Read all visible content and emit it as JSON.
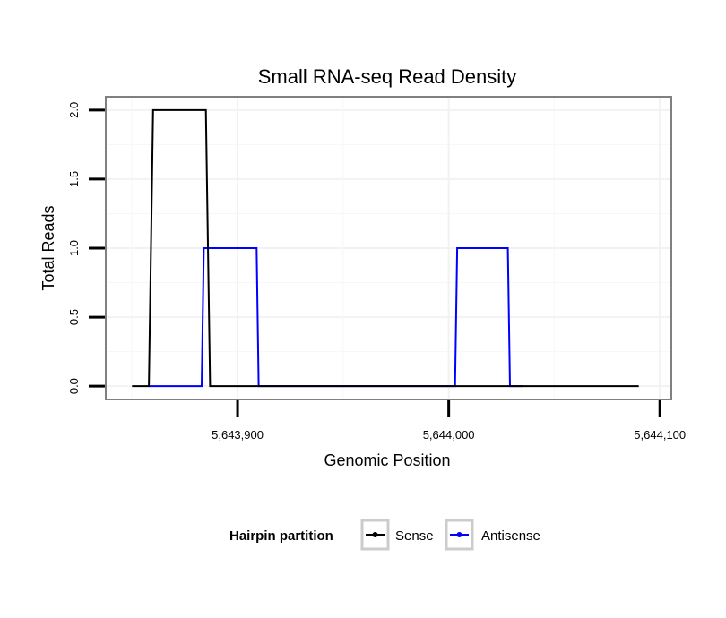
{
  "chart_data": {
    "type": "line",
    "title": "Small RNA-seq Read Density",
    "xlabel": "Genomic Position",
    "ylabel": "Total Reads",
    "xlim": [
      5643838,
      5644105
    ],
    "ylim": [
      -0.09,
      2.09
    ],
    "x_ticks": [
      5643900,
      5644000,
      5644100
    ],
    "x_tick_labels": [
      "5,643,900",
      "5,644,000",
      "5,644,100"
    ],
    "y_ticks": [
      0,
      0.5,
      1,
      1.5,
      2
    ],
    "y_tick_labels": [
      "0.0",
      "0.5",
      "1.0",
      "1.5",
      "2.0"
    ],
    "grid": true,
    "legend": {
      "title": "Hairpin partition",
      "position": "bottom",
      "entries": [
        "Sense",
        "Antisense"
      ]
    },
    "series": [
      {
        "name": "Sense",
        "color": "#000000",
        "x": [
          5643850,
          5643858,
          5643860,
          5643885,
          5643887,
          5644090
        ],
        "y": [
          0,
          0,
          2,
          2,
          0,
          0
        ]
      },
      {
        "name": "Antisense",
        "color": "#0000ff",
        "x": [
          5643858,
          5643883,
          5643884,
          5643909,
          5643910,
          5644003,
          5644004,
          5644028,
          5644029,
          5644035
        ],
        "y": [
          0,
          0,
          1,
          1,
          0,
          0,
          1,
          1,
          0,
          0
        ]
      }
    ]
  }
}
